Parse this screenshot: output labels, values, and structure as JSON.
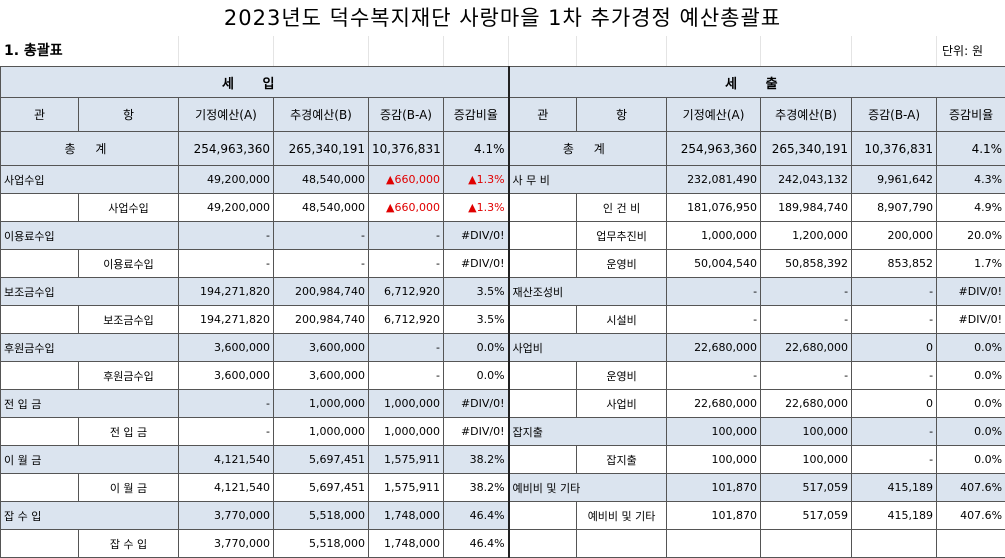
{
  "title": "2023년도 덕수복지재단 사랑마을 1차 추가경정 예산총괄표",
  "section": "1. 총괄표",
  "unit": "단위: 원",
  "income_header": "세 입",
  "expense_header": "세 출",
  "columns": [
    "관",
    "항",
    "기정예산(A)",
    "추경예산(B)",
    "증감(B-A)",
    "증감비율"
  ],
  "total": {
    "label": "총 계",
    "a": "254,963,360",
    "b": "265,340,191",
    "diff": "10,376,831",
    "ratio": "4.1%"
  },
  "income_rows": [
    {
      "kwan": "사업수입",
      "hang": "",
      "a": "49,200,000",
      "b": "48,540,000",
      "diff": "▲660,000",
      "ratio": "▲1.3%",
      "red": true
    },
    {
      "kwan": "",
      "hang": "사업수입",
      "a": "49,200,000",
      "b": "48,540,000",
      "diff": "▲660,000",
      "ratio": "▲1.3%",
      "red": true
    },
    {
      "kwan": "이용료수입",
      "hang": "",
      "a": "-",
      "b": "-",
      "diff": "-",
      "ratio": "#DIV/0!"
    },
    {
      "kwan": "",
      "hang": "이용료수입",
      "a": "-",
      "b": "-",
      "diff": "-",
      "ratio": "#DIV/0!"
    },
    {
      "kwan": "보조금수입",
      "hang": "",
      "a": "194,271,820",
      "b": "200,984,740",
      "diff": "6,712,920",
      "ratio": "3.5%"
    },
    {
      "kwan": "",
      "hang": "보조금수입",
      "a": "194,271,820",
      "b": "200,984,740",
      "diff": "6,712,920",
      "ratio": "3.5%"
    },
    {
      "kwan": "후원금수입",
      "hang": "",
      "a": "3,600,000",
      "b": "3,600,000",
      "diff": "-",
      "ratio": "0.0%"
    },
    {
      "kwan": "",
      "hang": "후원금수입",
      "a": "3,600,000",
      "b": "3,600,000",
      "diff": "-",
      "ratio": "0.0%"
    },
    {
      "kwan": "전 입 금",
      "hang": "",
      "a": "-",
      "b": "1,000,000",
      "diff": "1,000,000",
      "ratio": "#DIV/0!"
    },
    {
      "kwan": "",
      "hang": "전 입 금",
      "a": "-",
      "b": "1,000,000",
      "diff": "1,000,000",
      "ratio": "#DIV/0!"
    },
    {
      "kwan": "이 월 금",
      "hang": "",
      "a": "4,121,540",
      "b": "5,697,451",
      "diff": "1,575,911",
      "ratio": "38.2%"
    },
    {
      "kwan": "",
      "hang": "이 월 금",
      "a": "4,121,540",
      "b": "5,697,451",
      "diff": "1,575,911",
      "ratio": "38.2%"
    },
    {
      "kwan": "잡 수 입",
      "hang": "",
      "a": "3,770,000",
      "b": "5,518,000",
      "diff": "1,748,000",
      "ratio": "46.4%"
    },
    {
      "kwan": "",
      "hang": "잡 수 입",
      "a": "3,770,000",
      "b": "5,518,000",
      "diff": "1,748,000",
      "ratio": "46.4%"
    }
  ],
  "expense_rows": [
    {
      "kwan": "사 무 비",
      "hang": "",
      "a": "232,081,490",
      "b": "242,043,132",
      "diff": "9,961,642",
      "ratio": "4.3%"
    },
    {
      "kwan": "",
      "hang": "인 건 비",
      "a": "181,076,950",
      "b": "189,984,740",
      "diff": "8,907,790",
      "ratio": "4.9%"
    },
    {
      "kwan": "",
      "hang": "업무추진비",
      "a": "1,000,000",
      "b": "1,200,000",
      "diff": "200,000",
      "ratio": "20.0%"
    },
    {
      "kwan": "",
      "hang": "운영비",
      "a": "50,004,540",
      "b": "50,858,392",
      "diff": "853,852",
      "ratio": "1.7%"
    },
    {
      "kwan": "재산조성비",
      "hang": "",
      "a": "-",
      "b": "-",
      "diff": "-",
      "ratio": "#DIV/0!"
    },
    {
      "kwan": "",
      "hang": "시설비",
      "a": "-",
      "b": "-",
      "diff": "-",
      "ratio": "#DIV/0!"
    },
    {
      "kwan": "사업비",
      "hang": "",
      "a": "22,680,000",
      "b": "22,680,000",
      "diff": "0",
      "ratio": "0.0%"
    },
    {
      "kwan": "",
      "hang": "운영비",
      "a": "-",
      "b": "-",
      "diff": "-",
      "ratio": "0.0%"
    },
    {
      "kwan": "",
      "hang": "사업비",
      "a": "22,680,000",
      "b": "22,680,000",
      "diff": "0",
      "ratio": "0.0%"
    },
    {
      "kwan": "잡지출",
      "hang": "",
      "a": "100,000",
      "b": "100,000",
      "diff": "-",
      "ratio": "0.0%"
    },
    {
      "kwan": "",
      "hang": "잡지출",
      "a": "100,000",
      "b": "100,000",
      "diff": "-",
      "ratio": "0.0%"
    },
    {
      "kwan": "예비비 및 기타",
      "hang": "",
      "a": "101,870",
      "b": "517,059",
      "diff": "415,189",
      "ratio": "407.6%"
    },
    {
      "kwan": "",
      "hang": "예비비 및 기타",
      "a": "101,870",
      "b": "517,059",
      "diff": "415,189",
      "ratio": "407.6%"
    },
    {
      "kwan": "",
      "hang": "",
      "a": "",
      "b": "",
      "diff": "",
      "ratio": ""
    }
  ],
  "colors": {
    "header_fill": "#dbe4ef",
    "negative": "#e00000"
  }
}
